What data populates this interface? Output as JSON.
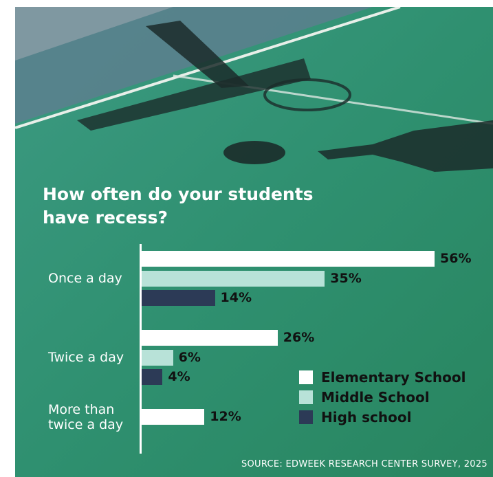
{
  "title": "How often do your students have recess?",
  "source": "SOURCE: EDWEEK RESEARCH CENTER SURVEY, 2025",
  "colors": {
    "elementary": "#ffffff",
    "middle": "#b8e2d8",
    "high": "#2c3a56"
  },
  "chart_data": {
    "type": "bar",
    "orientation": "horizontal",
    "title": "How often do your students have recess?",
    "categories": [
      "Once a day",
      "Twice a day",
      "More than twice a day"
    ],
    "series": [
      {
        "name": "Elementary School",
        "values": [
          56,
          26,
          12
        ]
      },
      {
        "name": "Middle School",
        "values": [
          35,
          6,
          null
        ]
      },
      {
        "name": "High school",
        "values": [
          14,
          4,
          null
        ]
      }
    ],
    "value_suffix": "%",
    "xlim": [
      0,
      56
    ],
    "grid": false,
    "legend": "bottom-right"
  }
}
